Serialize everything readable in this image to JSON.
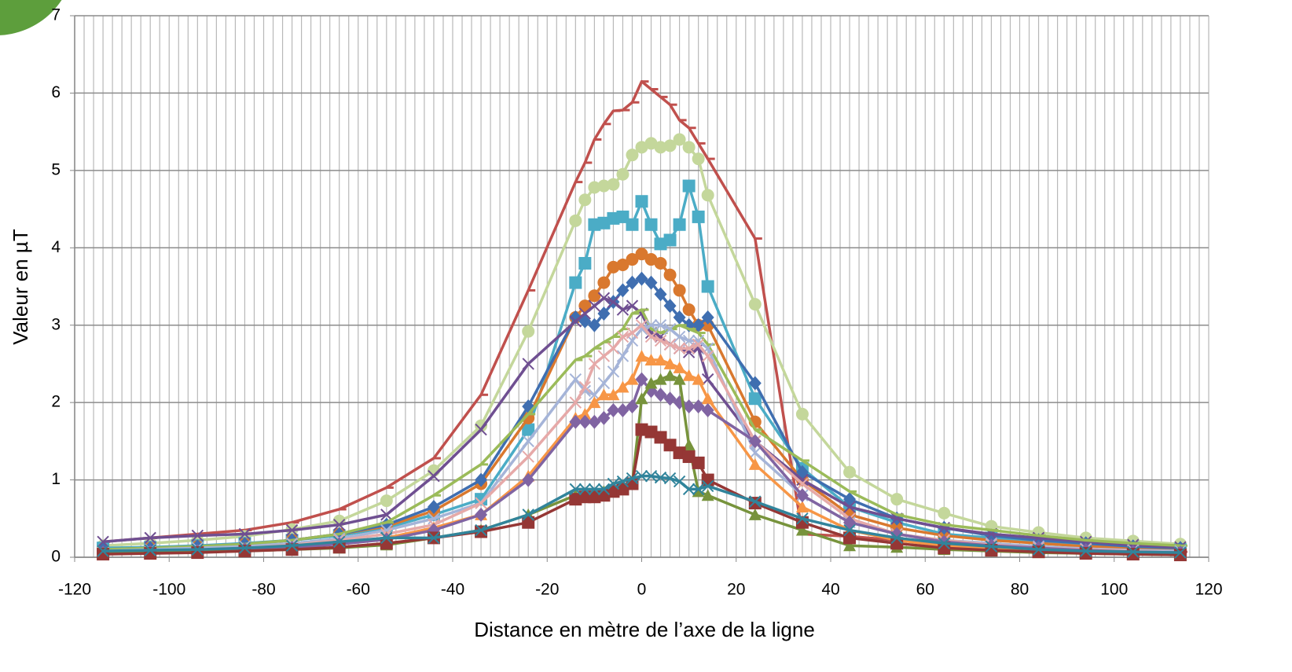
{
  "chart_data": {
    "type": "line",
    "y_label": "Valeur en µT",
    "x_label": "Distance en mètre de l’axe de la ligne",
    "xlim": [
      -120,
      120
    ],
    "xticks": [
      -120,
      -100,
      -80,
      -60,
      -40,
      -20,
      0,
      20,
      40,
      60,
      80,
      100,
      120
    ],
    "ylim": [
      0,
      7
    ],
    "yticks": [
      0,
      1,
      2,
      3,
      4,
      5,
      6,
      7
    ],
    "grid": true,
    "minor_grid_step": 2,
    "x": [
      -114,
      -104,
      -94,
      -84,
      -74,
      -64,
      -54,
      -44,
      -34,
      -24,
      -14,
      -12,
      -10,
      -8,
      -6,
      -4,
      -2,
      0,
      2,
      4,
      6,
      8,
      10,
      12,
      14,
      24,
      34,
      44,
      54,
      64,
      74,
      84,
      94,
      104,
      114
    ],
    "series": [
      {
        "color": "#c0504d",
        "marker": "dash",
        "values": [
          0.2,
          0.25,
          0.3,
          0.35,
          0.45,
          0.62,
          0.9,
          1.28,
          2.1,
          3.45,
          4.85,
          5.1,
          5.4,
          5.6,
          5.77,
          5.78,
          5.88,
          6.15,
          6.05,
          5.95,
          5.85,
          5.65,
          5.55,
          5.35,
          5.15,
          4.12,
          0.3,
          0.27,
          0.22,
          0.18,
          0.15,
          0.12,
          0.1,
          0.08,
          0.07
        ]
      },
      {
        "color": "#c4d79b",
        "marker": "circle",
        "values": [
          0.15,
          0.18,
          0.22,
          0.27,
          0.36,
          0.47,
          0.73,
          1.12,
          1.7,
          2.92,
          4.35,
          4.62,
          4.78,
          4.8,
          4.82,
          4.95,
          5.2,
          5.3,
          5.35,
          5.3,
          5.32,
          5.4,
          5.3,
          5.15,
          4.68,
          3.27,
          1.85,
          1.1,
          0.75,
          0.57,
          0.4,
          0.32,
          0.25,
          0.21,
          0.17
        ]
      },
      {
        "color": "#4bacc6",
        "marker": "square",
        "values": [
          0.12,
          0.13,
          0.15,
          0.18,
          0.22,
          0.28,
          0.38,
          0.55,
          0.75,
          1.65,
          3.55,
          3.8,
          4.3,
          4.32,
          4.38,
          4.4,
          4.3,
          4.6,
          4.3,
          4.05,
          4.1,
          4.3,
          4.8,
          4.4,
          3.5,
          2.05,
          1.15,
          0.65,
          0.45,
          0.3,
          0.25,
          0.2,
          0.15,
          0.12,
          0.1
        ]
      },
      {
        "color": "#d9782e",
        "marker": "circle",
        "values": [
          0.1,
          0.12,
          0.14,
          0.17,
          0.22,
          0.3,
          0.4,
          0.6,
          0.95,
          1.8,
          3.1,
          3.25,
          3.38,
          3.55,
          3.75,
          3.78,
          3.85,
          3.92,
          3.85,
          3.8,
          3.65,
          3.45,
          3.2,
          3.0,
          3.0,
          1.75,
          1.0,
          0.55,
          0.38,
          0.28,
          0.22,
          0.18,
          0.14,
          0.12,
          0.1
        ]
      },
      {
        "color": "#3f6eb0",
        "marker": "diamond",
        "values": [
          0.1,
          0.12,
          0.14,
          0.17,
          0.22,
          0.3,
          0.42,
          0.65,
          1.0,
          1.95,
          3.1,
          3.05,
          3.0,
          3.15,
          3.3,
          3.45,
          3.55,
          3.6,
          3.55,
          3.4,
          3.25,
          3.1,
          3.0,
          3.0,
          3.1,
          2.25,
          1.1,
          0.75,
          0.5,
          0.38,
          0.28,
          0.22,
          0.18,
          0.14,
          0.12
        ]
      },
      {
        "color": "#6f4f91",
        "marker": "x",
        "values": [
          0.2,
          0.25,
          0.28,
          0.3,
          0.35,
          0.42,
          0.55,
          1.05,
          1.65,
          2.5,
          3.05,
          3.15,
          3.25,
          3.35,
          3.3,
          3.2,
          3.25,
          3.15,
          2.9,
          2.85,
          2.75,
          2.7,
          2.65,
          2.7,
          2.3,
          1.5,
          1.0,
          0.65,
          0.5,
          0.38,
          0.3,
          0.25,
          0.2,
          0.16,
          0.13
        ]
      },
      {
        "color": "#9bbb59",
        "marker": "dash",
        "values": [
          0.1,
          0.12,
          0.14,
          0.17,
          0.22,
          0.3,
          0.45,
          0.8,
          1.2,
          1.85,
          2.55,
          2.6,
          2.7,
          2.78,
          2.85,
          2.95,
          3.15,
          3.2,
          2.95,
          2.9,
          2.95,
          3.0,
          2.95,
          2.9,
          2.75,
          1.65,
          1.25,
          0.85,
          0.55,
          0.42,
          0.35,
          0.28,
          0.22,
          0.18,
          0.15
        ]
      },
      {
        "color": "#a5b4d8",
        "marker": "x",
        "values": [
          0.08,
          0.1,
          0.12,
          0.14,
          0.18,
          0.24,
          0.35,
          0.5,
          0.7,
          1.5,
          2.3,
          2.15,
          2.1,
          2.25,
          2.4,
          2.6,
          2.8,
          2.95,
          3.0,
          3.0,
          2.95,
          2.85,
          2.8,
          2.8,
          2.7,
          1.35,
          0.8,
          0.45,
          0.3,
          0.22,
          0.18,
          0.14,
          0.11,
          0.09,
          0.08
        ]
      },
      {
        "color": "#e6a9a8",
        "marker": "x",
        "values": [
          0.06,
          0.08,
          0.1,
          0.12,
          0.16,
          0.22,
          0.3,
          0.42,
          0.7,
          1.3,
          2.0,
          2.2,
          2.5,
          2.6,
          2.7,
          2.85,
          2.9,
          3.0,
          2.85,
          2.8,
          2.75,
          2.7,
          2.7,
          2.75,
          2.6,
          1.5,
          0.95,
          0.5,
          0.3,
          0.22,
          0.16,
          0.12,
          0.1,
          0.08,
          0.06
        ]
      },
      {
        "color": "#f79646",
        "marker": "triangle",
        "values": [
          0.05,
          0.06,
          0.07,
          0.09,
          0.12,
          0.18,
          0.25,
          0.38,
          0.55,
          1.05,
          1.8,
          1.85,
          2.0,
          2.1,
          2.1,
          2.2,
          2.3,
          2.6,
          2.55,
          2.55,
          2.5,
          2.45,
          2.35,
          2.3,
          2.05,
          1.2,
          0.65,
          0.35,
          0.22,
          0.15,
          0.12,
          0.09,
          0.07,
          0.06,
          0.05
        ]
      },
      {
        "color": "#8064a2",
        "marker": "diamond",
        "values": [
          0.06,
          0.07,
          0.08,
          0.1,
          0.12,
          0.17,
          0.23,
          0.35,
          0.55,
          1.0,
          1.75,
          1.75,
          1.75,
          1.8,
          1.9,
          1.9,
          1.95,
          2.3,
          2.15,
          2.1,
          2.05,
          2.0,
          1.95,
          1.95,
          1.9,
          1.5,
          0.8,
          0.45,
          0.3,
          0.2,
          0.15,
          0.12,
          0.09,
          0.07,
          0.06
        ]
      },
      {
        "color": "#77933c",
        "marker": "triangle",
        "values": [
          0.05,
          0.06,
          0.07,
          0.08,
          0.1,
          0.12,
          0.16,
          0.25,
          0.35,
          0.55,
          0.8,
          0.8,
          0.8,
          0.85,
          0.9,
          0.9,
          0.95,
          2.05,
          2.25,
          2.3,
          2.35,
          2.3,
          1.45,
          0.85,
          0.8,
          0.55,
          0.35,
          0.15,
          0.13,
          0.1,
          0.08,
          0.06,
          0.05,
          0.04,
          0.03
        ]
      },
      {
        "color": "#953735",
        "marker": "square",
        "values": [
          0.04,
          0.05,
          0.06,
          0.08,
          0.1,
          0.13,
          0.18,
          0.25,
          0.33,
          0.45,
          0.75,
          0.78,
          0.78,
          0.8,
          0.85,
          0.88,
          0.95,
          1.65,
          1.62,
          1.55,
          1.45,
          1.35,
          1.3,
          1.22,
          1.0,
          0.7,
          0.45,
          0.25,
          0.18,
          0.12,
          0.09,
          0.07,
          0.05,
          0.04,
          0.03
        ]
      },
      {
        "color": "#31849b",
        "marker": "x",
        "values": [
          0.08,
          0.09,
          0.1,
          0.12,
          0.15,
          0.2,
          0.25,
          0.25,
          0.35,
          0.55,
          0.88,
          0.88,
          0.88,
          0.88,
          0.95,
          0.98,
          1.02,
          1.05,
          1.05,
          1.03,
          1.02,
          0.98,
          0.88,
          0.88,
          0.92,
          0.72,
          0.5,
          0.35,
          0.25,
          0.18,
          0.14,
          0.1,
          0.08,
          0.07,
          0.06
        ]
      }
    ]
  }
}
